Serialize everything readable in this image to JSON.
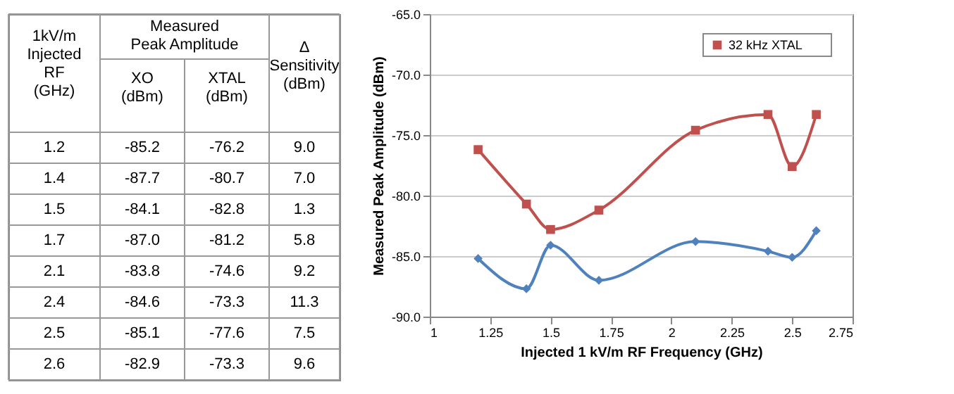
{
  "chart_data": [
    {
      "type": "other",
      "title": "Measured Peak Amplitude",
      "xlabel": "1kV/m Injected RF (GHz)",
      "categories": [
        "1.2",
        "1.4",
        "1.5",
        "1.7",
        "2.1",
        "2.4",
        "2.5",
        "2.6"
      ],
      "series": [
        {
          "name": "XO (dBm)",
          "values": [
            -85.2,
            -87.7,
            -84.1,
            -87.0,
            -83.8,
            -84.6,
            -85.1,
            -82.9
          ],
          "value_labels": [
            "-85.2",
            "-87.7",
            "-84.1",
            "-87.0",
            "-83.8",
            "-84.6",
            "-85.1",
            "-82.9"
          ]
        },
        {
          "name": "XTAL (dBm)",
          "values": [
            -76.2,
            -80.7,
            -82.8,
            -81.2,
            -74.6,
            -73.3,
            -77.6,
            -73.3
          ],
          "value_labels": [
            "-76.2",
            "-80.7",
            "-82.8",
            "-81.2",
            "-74.6",
            "-73.3",
            "-77.6",
            "-73.3"
          ]
        },
        {
          "name": "Δ Sensitivity (dBm)",
          "values": [
            9.0,
            7.0,
            1.3,
            5.8,
            9.2,
            11.3,
            7.5,
            9.6
          ],
          "value_labels": [
            "9.0",
            "7.0",
            "1.3",
            "5.8",
            "9.2",
            "11.3",
            "7.5",
            "9.6"
          ]
        }
      ]
    },
    {
      "type": "line",
      "xlabel": "Injected 1 kV/m RF Frequency (GHz)",
      "ylabel": "Measured Peak Amplitude (dBm)",
      "x": [
        1.2,
        1.4,
        1.5,
        1.7,
        2.1,
        2.4,
        2.5,
        2.6
      ],
      "xlim": [
        1,
        2.75
      ],
      "xticks": [
        1,
        1.25,
        1.5,
        1.75,
        2,
        2.25,
        2.5,
        2.75
      ],
      "ylim": [
        -90,
        -65
      ],
      "yticks": [
        {
          "value": -90,
          "label": "-90.0"
        },
        {
          "value": -85,
          "label": "-85.0"
        },
        {
          "value": -80,
          "label": "-80.0"
        },
        {
          "value": -75,
          "label": "-75.0"
        },
        {
          "value": -70,
          "label": "-70.0"
        },
        {
          "value": -65,
          "label": "-65.0"
        }
      ],
      "grid": "y",
      "legend": "top right",
      "line_style": "solid",
      "series": [
        {
          "color": "#4f81bd",
          "marker": "diamond",
          "values": [
            -85.2,
            -87.7,
            -84.1,
            -87.0,
            -83.8,
            -84.6,
            -85.1,
            -82.9
          ]
        },
        {
          "name": "32 kHz XTAL",
          "color": "#c0504d",
          "marker": "square",
          "values": [
            -76.2,
            -80.7,
            -82.8,
            -81.2,
            -74.6,
            -73.3,
            -77.6,
            -73.3
          ]
        }
      ]
    }
  ]
}
